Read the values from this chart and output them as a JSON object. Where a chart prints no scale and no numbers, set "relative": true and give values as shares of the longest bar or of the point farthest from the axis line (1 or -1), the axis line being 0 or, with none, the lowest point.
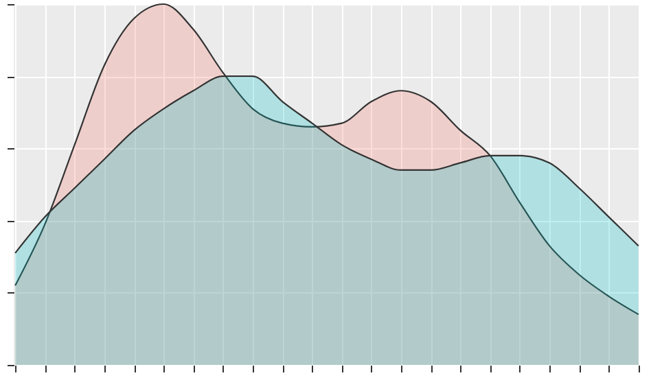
{
  "chart_data": {
    "type": "area",
    "relative": true,
    "grid": true,
    "categories": [
      null,
      null,
      null,
      null,
      null,
      null,
      null,
      null,
      null,
      null,
      null,
      null,
      null,
      null,
      null,
      null,
      null,
      null,
      null,
      null,
      null,
      null
    ],
    "series": [
      {
        "color": "#f8766d",
        "values": [
          0.22,
          0.39,
          0.61,
          0.83,
          0.96,
          1.0,
          0.93,
          0.81,
          0.71,
          0.67,
          0.66,
          0.67,
          0.73,
          0.76,
          0.73,
          0.65,
          0.58,
          0.45,
          0.33,
          0.25,
          0.19,
          0.14
        ]
      },
      {
        "color": "#00bfc4",
        "values": [
          0.31,
          0.41,
          0.49,
          0.57,
          0.65,
          0.71,
          0.76,
          0.8,
          0.8,
          0.73,
          0.67,
          0.61,
          0.57,
          0.54,
          0.54,
          0.56,
          0.58,
          0.58,
          0.56,
          0.49,
          0.41,
          0.33
        ]
      }
    ]
  }
}
